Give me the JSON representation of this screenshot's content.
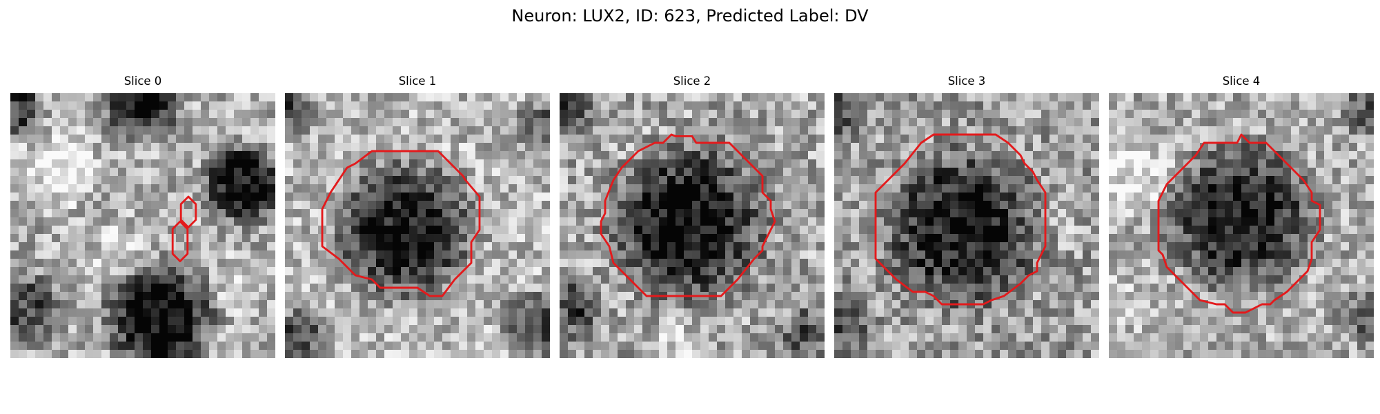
{
  "figure": {
    "title": "Neuron: LUX2, ID: 623, Predicted Label: DV"
  },
  "contour_color": "#e31a1c",
  "colormap": "gray",
  "grid_size": 32,
  "panels": [
    {
      "title": "Slice 0",
      "image": {
        "dark_blobs": [
          {
            "cx": 16,
            "cy": 1,
            "r": 6,
            "depth": 0.72
          },
          {
            "cx": 28,
            "cy": 11,
            "r": 6,
            "depth": 0.82
          },
          {
            "cx": 18,
            "cy": 27,
            "r": 8,
            "depth": 0.9
          },
          {
            "cx": 2,
            "cy": 26,
            "r": 5,
            "depth": 0.55
          },
          {
            "cx": 1,
            "cy": 2,
            "r": 4,
            "depth": 0.6
          }
        ],
        "bright_blobs": [
          {
            "cx": 6,
            "cy": 9,
            "r": 6,
            "amt": 0.35
          },
          {
            "cx": 13,
            "cy": 19,
            "r": 5,
            "amt": 0.2
          },
          {
            "cx": 28,
            "cy": 23,
            "r": 5,
            "amt": 0.15
          }
        ],
        "base": 0.68,
        "noise": 0.24
      },
      "contours": [
        [
          [
            21.5,
            12.5
          ],
          [
            22.4,
            13.4
          ],
          [
            22.4,
            15.3
          ],
          [
            21.5,
            16.2
          ],
          [
            20.6,
            15.3
          ],
          [
            20.6,
            13.4
          ]
        ],
        [
          [
            20.5,
            15.5
          ],
          [
            21.4,
            16.4
          ],
          [
            21.4,
            19.4
          ],
          [
            20.5,
            20.3
          ],
          [
            19.6,
            19.4
          ],
          [
            19.6,
            16.4
          ]
        ]
      ]
    },
    {
      "title": "Slice 1",
      "image": {
        "dark_blobs": [
          {
            "cx": 14.5,
            "cy": 16.5,
            "r": 10.5,
            "depth": 0.82
          },
          {
            "cx": 1,
            "cy": 2,
            "r": 4,
            "depth": 0.55
          },
          {
            "cx": 31,
            "cy": 4,
            "r": 4,
            "depth": 0.45
          },
          {
            "cx": 30,
            "cy": 28,
            "r": 5,
            "depth": 0.55
          },
          {
            "cx": 2,
            "cy": 29,
            "r": 4,
            "depth": 0.6
          }
        ],
        "bright_blobs": [],
        "base": 0.72,
        "noise": 0.24
      },
      "contours": [
        [
          [
            10.5,
            7.0
          ],
          [
            18.5,
            7.0
          ],
          [
            21.5,
            10.0
          ],
          [
            21.8,
            10.5
          ],
          [
            23.5,
            12.5
          ],
          [
            23.5,
            16.5
          ],
          [
            22.5,
            18.0
          ],
          [
            22.5,
            20.5
          ],
          [
            20.5,
            22.5
          ],
          [
            19.0,
            24.5
          ],
          [
            17.5,
            24.5
          ],
          [
            16.0,
            23.5
          ],
          [
            11.5,
            23.5
          ],
          [
            10.5,
            22.5
          ],
          [
            8.5,
            22.0
          ],
          [
            6.5,
            20.0
          ],
          [
            4.5,
            18.5
          ],
          [
            4.5,
            14.0
          ],
          [
            5.5,
            12.0
          ],
          [
            7.5,
            9.0
          ],
          [
            8.5,
            8.5
          ]
        ]
      ]
    },
    {
      "title": "Slice 2",
      "image": {
        "dark_blobs": [
          {
            "cx": 15.5,
            "cy": 15.5,
            "r": 11.5,
            "depth": 0.78
          },
          {
            "cx": 1,
            "cy": 2,
            "r": 4,
            "depth": 0.5
          },
          {
            "cx": 1,
            "cy": 26,
            "r": 5,
            "depth": 0.5
          },
          {
            "cx": 30,
            "cy": 29,
            "r": 4,
            "depth": 0.45
          }
        ],
        "bright_blobs": [
          {
            "cx": 14,
            "cy": 31,
            "r": 5,
            "amt": 0.2
          }
        ],
        "base": 0.66,
        "noise": 0.26
      },
      "contours": [
        [
          [
            13.5,
            5.0
          ],
          [
            14.0,
            5.2
          ],
          [
            16.0,
            5.2
          ],
          [
            16.5,
            6.0
          ],
          [
            20.5,
            6.0
          ],
          [
            22.5,
            8.0
          ],
          [
            24.5,
            10.0
          ],
          [
            24.5,
            12.0
          ],
          [
            25.5,
            13.0
          ],
          [
            25.5,
            14.0
          ],
          [
            26.0,
            15.5
          ],
          [
            25.5,
            16.5
          ],
          [
            24.5,
            18.5
          ],
          [
            24.5,
            19.0
          ],
          [
            23.5,
            20.0
          ],
          [
            21.5,
            22.5
          ],
          [
            19.5,
            24.5
          ],
          [
            17.5,
            24.5
          ],
          [
            15.5,
            24.5
          ],
          [
            10.5,
            24.5
          ],
          [
            9.0,
            23.0
          ],
          [
            6.5,
            20.5
          ],
          [
            6.0,
            18.5
          ],
          [
            5.0,
            17.0
          ],
          [
            5.0,
            15.5
          ],
          [
            5.5,
            14.5
          ],
          [
            5.5,
            13.0
          ],
          [
            6.5,
            10.5
          ],
          [
            7.5,
            9.0
          ],
          [
            9.5,
            7.0
          ],
          [
            11.5,
            6.0
          ],
          [
            12.5,
            6.0
          ]
        ]
      ]
    },
    {
      "title": "Slice 3",
      "image": {
        "dark_blobs": [
          {
            "cx": 15.5,
            "cy": 16.5,
            "r": 11.5,
            "depth": 0.7
          },
          {
            "cx": 1,
            "cy": 2,
            "r": 4,
            "depth": 0.45
          },
          {
            "cx": 1,
            "cy": 28,
            "r": 4,
            "depth": 0.4
          }
        ],
        "bright_blobs": [
          {
            "cx": 3,
            "cy": 16,
            "r": 4,
            "amt": 0.12
          },
          {
            "cx": 28,
            "cy": 16,
            "r": 4,
            "amt": 0.12
          }
        ],
        "base": 0.62,
        "noise": 0.26
      },
      "contours": [
        [
          [
            12.0,
            5.0
          ],
          [
            19.5,
            5.0
          ],
          [
            21.0,
            6.0
          ],
          [
            22.5,
            7.5
          ],
          [
            23.0,
            8.5
          ],
          [
            24.0,
            9.5
          ],
          [
            24.5,
            10.5
          ],
          [
            25.5,
            12.0
          ],
          [
            25.5,
            18.5
          ],
          [
            24.5,
            20.5
          ],
          [
            24.5,
            21.5
          ],
          [
            23.5,
            22.0
          ],
          [
            22.5,
            23.0
          ],
          [
            20.5,
            24.5
          ],
          [
            19.0,
            25.0
          ],
          [
            18.0,
            25.5
          ],
          [
            16.5,
            25.5
          ],
          [
            13.0,
            25.5
          ],
          [
            12.0,
            24.5
          ],
          [
            11.0,
            24.0
          ],
          [
            9.5,
            24.0
          ],
          [
            7.5,
            22.5
          ],
          [
            6.0,
            21.0
          ],
          [
            5.0,
            20.0
          ],
          [
            5.0,
            12.0
          ],
          [
            7.0,
            10.0
          ],
          [
            8.5,
            8.5
          ],
          [
            10.5,
            6.0
          ]
        ]
      ]
    },
    {
      "title": "Slice 4",
      "image": {
        "dark_blobs": [
          {
            "cx": 16,
            "cy": 15,
            "r": 11,
            "depth": 0.75
          },
          {
            "cx": 31,
            "cy": 2,
            "r": 4,
            "depth": 0.4
          },
          {
            "cx": 31,
            "cy": 27,
            "r": 4,
            "depth": 0.4
          }
        ],
        "bright_blobs": [
          {
            "cx": 3,
            "cy": 10,
            "r": 6,
            "amt": 0.28
          },
          {
            "cx": 2,
            "cy": 25,
            "r": 5,
            "amt": 0.15
          }
        ],
        "base": 0.68,
        "noise": 0.24
      },
      "contours": [
        [
          [
            16.0,
            5.0
          ],
          [
            16.5,
            5.5
          ],
          [
            17.0,
            6.0
          ],
          [
            19.0,
            6.0
          ],
          [
            21.0,
            8.0
          ],
          [
            22.5,
            9.5
          ],
          [
            23.5,
            10.5
          ],
          [
            24.5,
            12.0
          ],
          [
            24.5,
            13.0
          ],
          [
            25.5,
            13.5
          ],
          [
            25.5,
            16.5
          ],
          [
            24.5,
            18.0
          ],
          [
            24.5,
            20.0
          ],
          [
            24.0,
            21.5
          ],
          [
            23.0,
            22.5
          ],
          [
            22.5,
            23.0
          ],
          [
            21.5,
            24.0
          ],
          [
            20.0,
            25.0
          ],
          [
            19.5,
            25.5
          ],
          [
            18.5,
            25.5
          ],
          [
            17.5,
            26.0
          ],
          [
            16.5,
            26.5
          ],
          [
            15.0,
            26.5
          ],
          [
            14.0,
            25.5
          ],
          [
            13.0,
            25.5
          ],
          [
            11.0,
            25.0
          ],
          [
            10.0,
            24.0
          ],
          [
            9.0,
            23.0
          ],
          [
            8.0,
            22.0
          ],
          [
            7.0,
            21.0
          ],
          [
            6.5,
            19.5
          ],
          [
            6.0,
            19.0
          ],
          [
            6.0,
            15.0
          ],
          [
            6.0,
            13.0
          ],
          [
            7.0,
            11.0
          ],
          [
            8.5,
            9.5
          ],
          [
            10.5,
            7.5
          ],
          [
            11.5,
            6.0
          ],
          [
            12.0,
            6.0
          ],
          [
            15.5,
            6.0
          ]
        ]
      ]
    }
  ]
}
